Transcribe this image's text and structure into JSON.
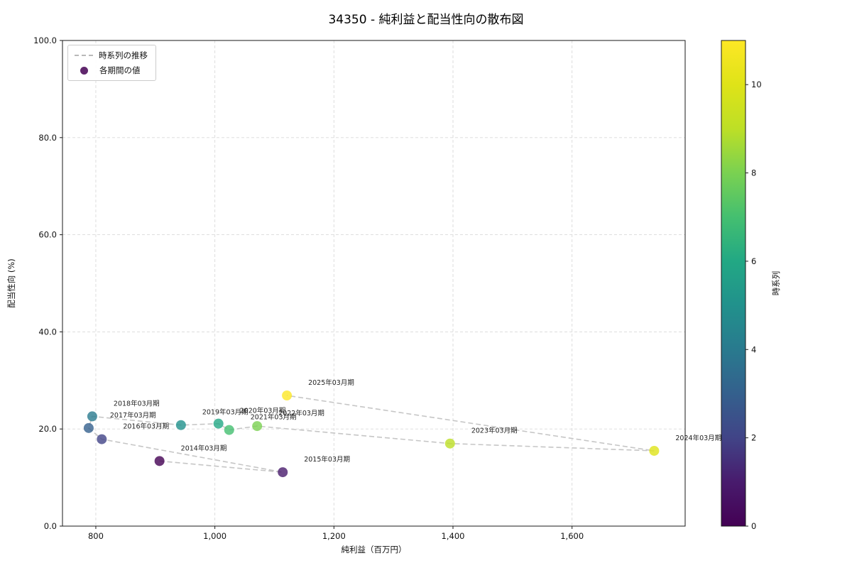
{
  "chart_data": {
    "type": "scatter",
    "title": "34350 - 純利益と配当性向の散布図",
    "xlabel": "純利益（百万円）",
    "ylabel": "配当性向 (%)",
    "xlim": [
      744,
      1790
    ],
    "ylim": [
      0,
      100
    ],
    "x_ticks": [
      800,
      1000,
      1200,
      1400,
      1600
    ],
    "x_tick_labels": [
      "800",
      "1,000",
      "1,200",
      "1,400",
      "1,600"
    ],
    "y_ticks": [
      0,
      20,
      40,
      60,
      80,
      100
    ],
    "y_tick_labels": [
      "0.0",
      "20.0",
      "40.0",
      "60.0",
      "80.0",
      "100.0"
    ],
    "grid": true,
    "line_color": "#c6c6c6",
    "points": [
      {
        "label": "2014年03月期",
        "x": 907,
        "y": 13.4,
        "t": 0,
        "color": "#440154"
      },
      {
        "label": "2015年03月期",
        "x": 1114,
        "y": 11.1,
        "t": 1,
        "color": "#481b6d"
      },
      {
        "label": "2016年03月期",
        "x": 810,
        "y": 17.9,
        "t": 2,
        "color": "#414487"
      },
      {
        "label": "2017年03月期",
        "x": 788,
        "y": 20.2,
        "t": 3,
        "color": "#34608d"
      },
      {
        "label": "2018年03月期",
        "x": 794,
        "y": 22.6,
        "t": 4,
        "color": "#297a8e"
      },
      {
        "label": "2019年03月期",
        "x": 943,
        "y": 20.8,
        "t": 5,
        "color": "#21918c"
      },
      {
        "label": "2020年03月期",
        "x": 1006,
        "y": 21.1,
        "t": 6,
        "color": "#22a884"
      },
      {
        "label": "2021年03月期",
        "x": 1024,
        "y": 19.8,
        "t": 7,
        "color": "#44bf70"
      },
      {
        "label": "2022年03月期",
        "x": 1071,
        "y": 20.6,
        "t": 8,
        "color": "#7ad151"
      },
      {
        "label": "2023年03月期",
        "x": 1395,
        "y": 17.0,
        "t": 9,
        "color": "#bddf26"
      },
      {
        "label": "2024年03月期",
        "x": 1738,
        "y": 15.5,
        "t": 10,
        "color": "#dfe318"
      },
      {
        "label": "2025年03月期",
        "x": 1121,
        "y": 26.9,
        "t": 11,
        "color": "#fde725"
      }
    ],
    "legend": {
      "line_label": "時系列の推移",
      "marker_label": "各期間の値",
      "marker_color": "#440154",
      "line_color": "#b9b9b9"
    },
    "colorbar": {
      "label": "時系列",
      "min": 0,
      "max": 11,
      "ticks": [
        0,
        2,
        4,
        6,
        8,
        10
      ],
      "tick_labels": [
        "0",
        "2",
        "4",
        "6",
        "8",
        "10"
      ],
      "colors": [
        "#440154",
        "#481b6d",
        "#414487",
        "#34608d",
        "#297a8e",
        "#21918c",
        "#22a884",
        "#44bf70",
        "#7ad151",
        "#bddf26",
        "#dfe318",
        "#fde725"
      ]
    }
  }
}
